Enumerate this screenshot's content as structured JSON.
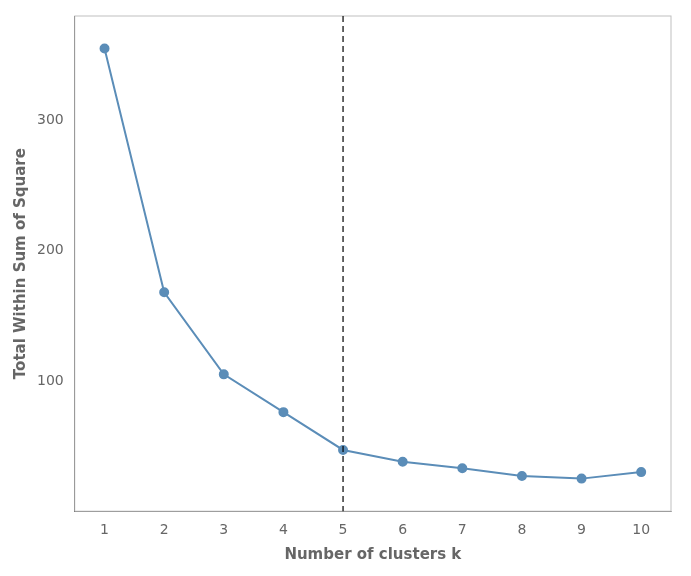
{
  "chart_data": {
    "type": "line",
    "x": [
      1,
      2,
      3,
      4,
      5,
      6,
      7,
      8,
      9,
      10
    ],
    "values": [
      355,
      168,
      105,
      76,
      47,
      38,
      33,
      27,
      25,
      30
    ],
    "color": "#5B8DB8",
    "marker": "circle",
    "xlabel": "Number of clusters k",
    "ylabel": "Total Within Sum of Square",
    "xlim": [
      0.5,
      10.5
    ],
    "ylim": [
      0,
      380
    ],
    "xticks": [
      1,
      2,
      3,
      4,
      5,
      6,
      7,
      8,
      9,
      10
    ],
    "yticks": [
      100,
      200,
      300
    ],
    "vline": {
      "x": 5,
      "color": "#000000",
      "line_style": "dashed"
    },
    "grid": false
  }
}
